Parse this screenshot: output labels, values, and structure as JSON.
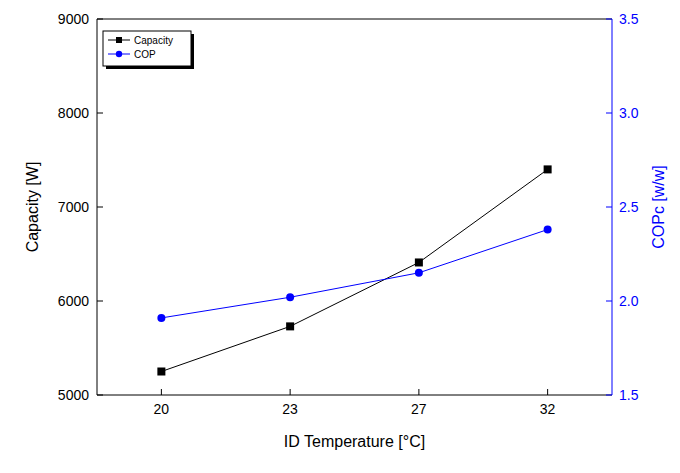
{
  "chart_data": {
    "type": "line",
    "x_label": "ID Temperature [°C]",
    "y_label": "Capacity [W]",
    "y2_label": "COPc [w/w]",
    "categories": [
      "20",
      "23",
      "27",
      "32"
    ],
    "ylim": [
      5000,
      9000
    ],
    "yticks": [
      5000,
      6000,
      7000,
      8000,
      9000
    ],
    "y2lim": [
      1.5,
      3.5
    ],
    "y2ticks": [
      {
        "value": 1.5,
        "label": "1.5"
      },
      {
        "value": 2.0,
        "label": "2.0"
      },
      {
        "value": 2.5,
        "label": "2.5"
      },
      {
        "value": 3.0,
        "label": "3.0"
      },
      {
        "value": 3.5,
        "label": "3.5"
      }
    ],
    "legend": "upper-left",
    "grid": false,
    "series": [
      {
        "name": "Capacity",
        "color": "#000000",
        "marker": "square",
        "line_style": "solid",
        "values": [
          5250,
          5730,
          6410,
          7400
        ]
      },
      {
        "name": "COP",
        "color": "#0000ff",
        "marker": "circle",
        "line_style": "solid",
        "axis": "y2",
        "values": [
          1.91,
          2.02,
          2.15,
          2.38
        ]
      }
    ]
  }
}
